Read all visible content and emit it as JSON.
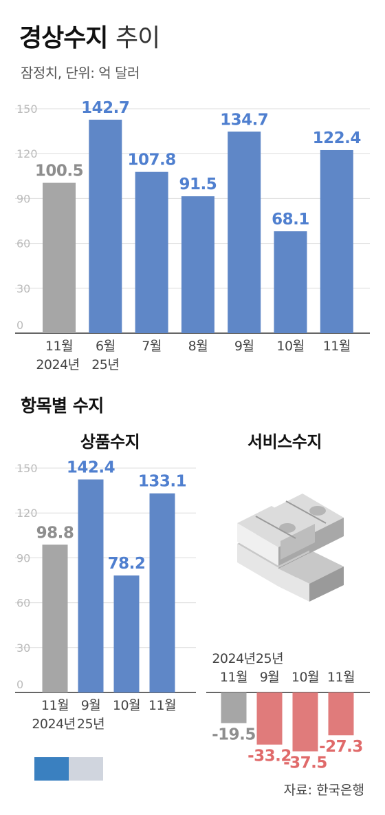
{
  "title": {
    "bold": "경상수지",
    "light": "추이"
  },
  "subtitle": "잠정치, 단위: 억 달러",
  "section_title": "항목별 수지",
  "panels": {
    "goods_title": "상품수지",
    "services_title": "서비스수지"
  },
  "source": "자료: 한국은행",
  "colors": {
    "gray": "#a6a6a6",
    "blue": "#5f87c7",
    "red": "#e07b7b",
    "blue_text": "#4f7fcf",
    "gray_text": "#8e8e8e",
    "red_text": "#e06a6a"
  },
  "icons": {
    "money": "money-stack-icon"
  },
  "chart_data": [
    {
      "type": "bar",
      "title": "경상수지 추이",
      "ylim": [
        0,
        150
      ],
      "yticks": [
        "0",
        "30",
        "60",
        "90",
        "120",
        "150"
      ],
      "categories": [
        [
          "11월",
          "2024년"
        ],
        [
          "6월",
          "25년"
        ],
        [
          "7월"
        ],
        [
          "8월"
        ],
        [
          "9월"
        ],
        [
          "10월"
        ],
        [
          "11월"
        ]
      ],
      "values": [
        100.5,
        142.7,
        107.8,
        91.5,
        134.7,
        68.1,
        122.4
      ],
      "labels": [
        "100.5",
        "142.7",
        "107.8",
        "91.5",
        "134.7",
        "68.1",
        "122.4"
      ],
      "bar_colors": [
        "gray",
        "blue",
        "blue",
        "blue",
        "blue",
        "blue",
        "blue"
      ]
    },
    {
      "type": "bar",
      "title": "상품수지",
      "ylim": [
        0,
        150
      ],
      "yticks": [
        "0",
        "30",
        "60",
        "90",
        "120",
        "150"
      ],
      "categories": [
        [
          "11월",
          "2024년"
        ],
        [
          "9월",
          "25년"
        ],
        [
          "10월"
        ],
        [
          "11월"
        ]
      ],
      "values": [
        98.8,
        142.4,
        78.2,
        133.1
      ],
      "labels": [
        "98.8",
        "142.4",
        "78.2",
        "133.1"
      ],
      "bar_colors": [
        "gray",
        "blue",
        "blue",
        "blue"
      ]
    },
    {
      "type": "bar",
      "title": "서비스수지",
      "categories": [
        [
          "2024년",
          "11월"
        ],
        [
          "25년",
          "9월"
        ],
        [
          "10월"
        ],
        [
          "11월"
        ]
      ],
      "values": [
        -19.5,
        -33.2,
        -37.5,
        -27.3
      ],
      "labels": [
        "-19.5",
        "-33.2",
        "-37.5",
        "-27.3"
      ],
      "bar_colors": [
        "gray",
        "red",
        "red",
        "red"
      ]
    }
  ]
}
